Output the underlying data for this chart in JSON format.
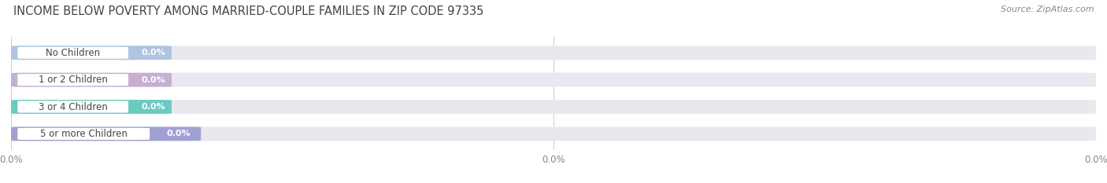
{
  "title": "INCOME BELOW POVERTY AMONG MARRIED-COUPLE FAMILIES IN ZIP CODE 97335",
  "source": "Source: ZipAtlas.com",
  "categories": [
    "No Children",
    "1 or 2 Children",
    "3 or 4 Children",
    "5 or more Children"
  ],
  "values": [
    0.0,
    0.0,
    0.0,
    0.0
  ],
  "bar_colors": [
    "#a8c0e0",
    "#c4a8d0",
    "#5ec8bc",
    "#9898d0"
  ],
  "bar_bg_color": "#e8e8ee",
  "background_color": "#ffffff",
  "title_color": "#444444",
  "source_color": "#888888",
  "label_text_color": "#444444",
  "value_text_color": "#ffffff",
  "grid_color": "#cccccc",
  "title_fontsize": 10.5,
  "source_fontsize": 8,
  "bar_label_fontsize": 8.5,
  "value_fontsize": 8,
  "xtick_fontsize": 8.5,
  "xtick_color": "#888888",
  "xtick_labels": [
    "0.0%",
    "0.0%",
    "0.0%"
  ],
  "xtick_positions": [
    0.0,
    0.5,
    1.0
  ]
}
